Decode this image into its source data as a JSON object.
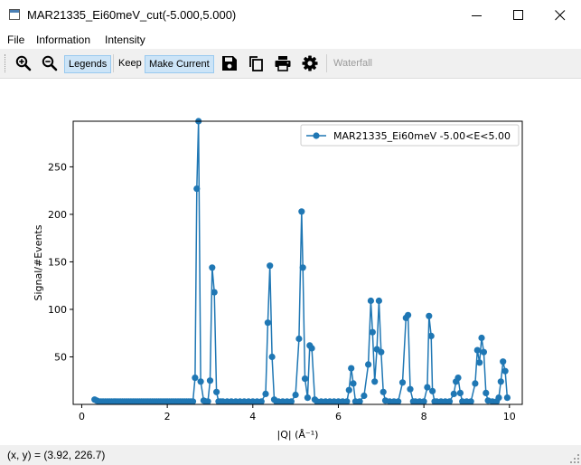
{
  "window": {
    "title": "MAR21335_Ei60meV_cut(-5.000,5.000)"
  },
  "menu": {
    "file": "File",
    "information": "Information",
    "intensity": "Intensity"
  },
  "toolbar": {
    "legends": "Legends",
    "keep": "Keep",
    "make_current": "Make Current",
    "waterfall": "Waterfall"
  },
  "status": {
    "text": "(x, y) = (3.92, 226.7)"
  },
  "chart_data": {
    "type": "line",
    "marker": "circle",
    "color": "#1f77b4",
    "xlabel": "|Q| (Å⁻¹)",
    "ylabel": "Signal/#Events",
    "xlim": [
      -0.2,
      10.3
    ],
    "ylim": [
      0,
      298
    ],
    "xticks": [
      0,
      2,
      4,
      6,
      8,
      10
    ],
    "yticks": [
      50,
      100,
      150,
      200,
      250
    ],
    "legend_position": "top-right",
    "series": [
      {
        "name": "MAR21335_Ei60meV -5.00<E<5.00",
        "x": [
          0.3,
          0.35,
          0.4,
          0.45,
          0.5,
          0.55,
          0.6,
          0.65,
          0.7,
          0.75,
          0.8,
          0.85,
          0.9,
          0.95,
          1.0,
          1.05,
          1.1,
          1.15,
          1.2,
          1.25,
          1.3,
          1.35,
          1.4,
          1.45,
          1.5,
          1.55,
          1.6,
          1.65,
          1.7,
          1.75,
          1.8,
          1.85,
          1.9,
          1.95,
          2.0,
          2.05,
          2.1,
          2.15,
          2.2,
          2.25,
          2.3,
          2.35,
          2.4,
          2.45,
          2.5,
          2.55,
          2.6,
          2.65,
          2.69,
          2.73,
          2.78,
          2.85,
          2.9,
          2.95,
          3.0,
          3.05,
          3.1,
          3.15,
          3.2,
          3.25,
          3.3,
          3.4,
          3.5,
          3.6,
          3.7,
          3.8,
          3.9,
          4.0,
          4.1,
          4.2,
          4.3,
          4.35,
          4.4,
          4.45,
          4.5,
          4.55,
          4.6,
          4.7,
          4.8,
          4.9,
          5.0,
          5.08,
          5.14,
          5.17,
          5.22,
          5.28,
          5.33,
          5.38,
          5.45,
          5.5,
          5.6,
          5.7,
          5.8,
          5.9,
          6.0,
          6.1,
          6.2,
          6.25,
          6.3,
          6.35,
          6.4,
          6.5,
          6.6,
          6.7,
          6.76,
          6.8,
          6.85,
          6.9,
          6.95,
          7.0,
          7.05,
          7.1,
          7.2,
          7.3,
          7.4,
          7.5,
          7.58,
          7.63,
          7.68,
          7.75,
          7.8,
          7.9,
          8.0,
          8.08,
          8.12,
          8.17,
          8.2,
          8.25,
          8.3,
          8.4,
          8.5,
          8.6,
          8.7,
          8.75,
          8.8,
          8.85,
          8.9,
          9.0,
          9.1,
          9.2,
          9.25,
          9.3,
          9.35,
          9.4,
          9.45,
          9.5,
          9.6,
          9.7,
          9.75,
          9.8,
          9.85,
          9.9,
          9.95
        ],
        "y": [
          5,
          4,
          3,
          3,
          3,
          3,
          3,
          3,
          3,
          3,
          3,
          3,
          3,
          3,
          3,
          3,
          3,
          3,
          3,
          3,
          3,
          3,
          3,
          3,
          3,
          3,
          3,
          3,
          3,
          3,
          3,
          3,
          3,
          3,
          3,
          3,
          3,
          3,
          3,
          3,
          3,
          3,
          3,
          3,
          3,
          3,
          3,
          28,
          227,
          298,
          24,
          4,
          3,
          3,
          25,
          144,
          118,
          13,
          3,
          3,
          3,
          3,
          3,
          3,
          3,
          3,
          3,
          3,
          3,
          3,
          11,
          86,
          146,
          50,
          5,
          3,
          3,
          3,
          3,
          3,
          10,
          69,
          203,
          144,
          27,
          7,
          62,
          59,
          5,
          3,
          3,
          3,
          3,
          3,
          3,
          3,
          3,
          15,
          38,
          22,
          3,
          3,
          9,
          42,
          109,
          76,
          24,
          58,
          109,
          55,
          13,
          4,
          3,
          3,
          3,
          23,
          91,
          94,
          16,
          3,
          3,
          3,
          3,
          18,
          93,
          72,
          14,
          3,
          3,
          3,
          3,
          3,
          11,
          24,
          28,
          12,
          3,
          3,
          3,
          22,
          57,
          44,
          70,
          55,
          12,
          4,
          3,
          3,
          7,
          24,
          45,
          35,
          7
        ]
      }
    ]
  }
}
